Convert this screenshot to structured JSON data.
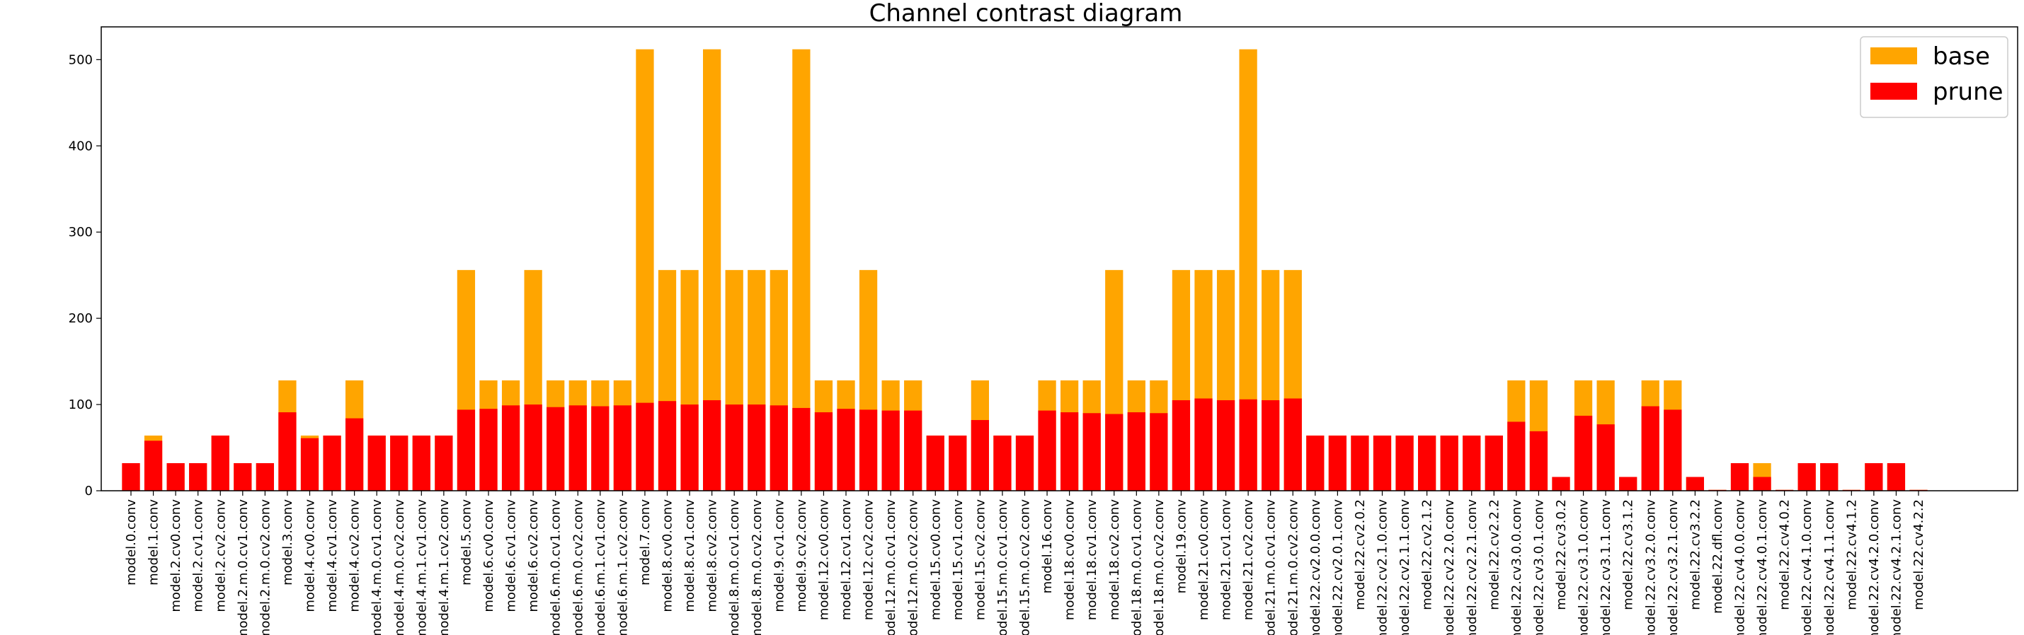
{
  "chart_data": {
    "type": "bar",
    "title": "Channel contrast diagram",
    "xlabel": "",
    "ylabel": "",
    "ylim": [
      0,
      538
    ],
    "yticks": [
      0,
      100,
      200,
      300,
      400,
      500
    ],
    "grid": false,
    "legend_position": "top-right",
    "categories": [
      "model.0.conv",
      "model.1.conv",
      "model.2.cv0.conv",
      "model.2.cv1.conv",
      "model.2.cv2.conv",
      "model.2.m.0.cv1.conv",
      "model.2.m.0.cv2.conv",
      "model.3.conv",
      "model.4.cv0.conv",
      "model.4.cv1.conv",
      "model.4.cv2.conv",
      "model.4.m.0.cv1.conv",
      "model.4.m.0.cv2.conv",
      "model.4.m.1.cv1.conv",
      "model.4.m.1.cv2.conv",
      "model.5.conv",
      "model.6.cv0.conv",
      "model.6.cv1.conv",
      "model.6.cv2.conv",
      "model.6.m.0.cv1.conv",
      "model.6.m.0.cv2.conv",
      "model.6.m.1.cv1.conv",
      "model.6.m.1.cv2.conv",
      "model.7.conv",
      "model.8.cv0.conv",
      "model.8.cv1.conv",
      "model.8.cv2.conv",
      "model.8.m.0.cv1.conv",
      "model.8.m.0.cv2.conv",
      "model.9.cv1.conv",
      "model.9.cv2.conv",
      "model.12.cv0.conv",
      "model.12.cv1.conv",
      "model.12.cv2.conv",
      "model.12.m.0.cv1.conv",
      "model.12.m.0.cv2.conv",
      "model.15.cv0.conv",
      "model.15.cv1.conv",
      "model.15.cv2.conv",
      "model.15.m.0.cv1.conv",
      "model.15.m.0.cv2.conv",
      "model.16.conv",
      "model.18.cv0.conv",
      "model.18.cv1.conv",
      "model.18.cv2.conv",
      "model.18.m.0.cv1.conv",
      "model.18.m.0.cv2.conv",
      "model.19.conv",
      "model.21.cv0.conv",
      "model.21.cv1.conv",
      "model.21.cv2.conv",
      "model.21.m.0.cv1.conv",
      "model.21.m.0.cv2.conv",
      "model.22.cv2.0.0.conv",
      "model.22.cv2.0.1.conv",
      "model.22.cv2.0.2",
      "model.22.cv2.1.0.conv",
      "model.22.cv2.1.1.conv",
      "model.22.cv2.1.2",
      "model.22.cv2.2.0.conv",
      "model.22.cv2.2.1.conv",
      "model.22.cv2.2.2",
      "model.22.cv3.0.0.conv",
      "model.22.cv3.0.1.conv",
      "model.22.cv3.0.2",
      "model.22.cv3.1.0.conv",
      "model.22.cv3.1.1.conv",
      "model.22.cv3.1.2",
      "model.22.cv3.2.0.conv",
      "model.22.cv3.2.1.conv",
      "model.22.cv3.2.2",
      "model.22.dfl.conv",
      "model.22.cv4.0.0.conv",
      "model.22.cv4.0.1.conv",
      "model.22.cv4.0.2",
      "model.22.cv4.1.0.conv",
      "model.22.cv4.1.1.conv",
      "model.22.cv4.1.2",
      "model.22.cv4.2.0.conv",
      "model.22.cv4.2.1.conv",
      "model.22.cv4.2.2"
    ],
    "series": [
      {
        "name": "base",
        "color": "#FFA500",
        "values": [
          32,
          64,
          32,
          32,
          64,
          32,
          32,
          128,
          64,
          64,
          128,
          64,
          64,
          64,
          64,
          256,
          128,
          128,
          256,
          128,
          128,
          128,
          128,
          512,
          256,
          256,
          512,
          256,
          256,
          256,
          512,
          128,
          128,
          256,
          128,
          128,
          64,
          64,
          128,
          64,
          64,
          128,
          128,
          128,
          256,
          128,
          128,
          256,
          256,
          256,
          512,
          256,
          256,
          64,
          64,
          64,
          64,
          64,
          64,
          64,
          64,
          64,
          128,
          128,
          16,
          128,
          128,
          16,
          128,
          128,
          16,
          1,
          32,
          32,
          1,
          32,
          32,
          1,
          32,
          32,
          1
        ]
      },
      {
        "name": "prune",
        "color": "#FF0000",
        "values": [
          32,
          58,
          32,
          32,
          64,
          32,
          32,
          91,
          61,
          64,
          84,
          64,
          64,
          64,
          64,
          94,
          95,
          99,
          100,
          97,
          99,
          98,
          99,
          102,
          104,
          100,
          105,
          100,
          100,
          99,
          96,
          91,
          95,
          94,
          93,
          93,
          64,
          64,
          82,
          64,
          64,
          93,
          91,
          90,
          89,
          91,
          90,
          105,
          107,
          105,
          106,
          105,
          107,
          64,
          64,
          64,
          64,
          64,
          64,
          64,
          64,
          64,
          80,
          69,
          16,
          87,
          77,
          16,
          98,
          94,
          16,
          1,
          32,
          16,
          1,
          32,
          32,
          1,
          32,
          32,
          1
        ]
      }
    ]
  }
}
